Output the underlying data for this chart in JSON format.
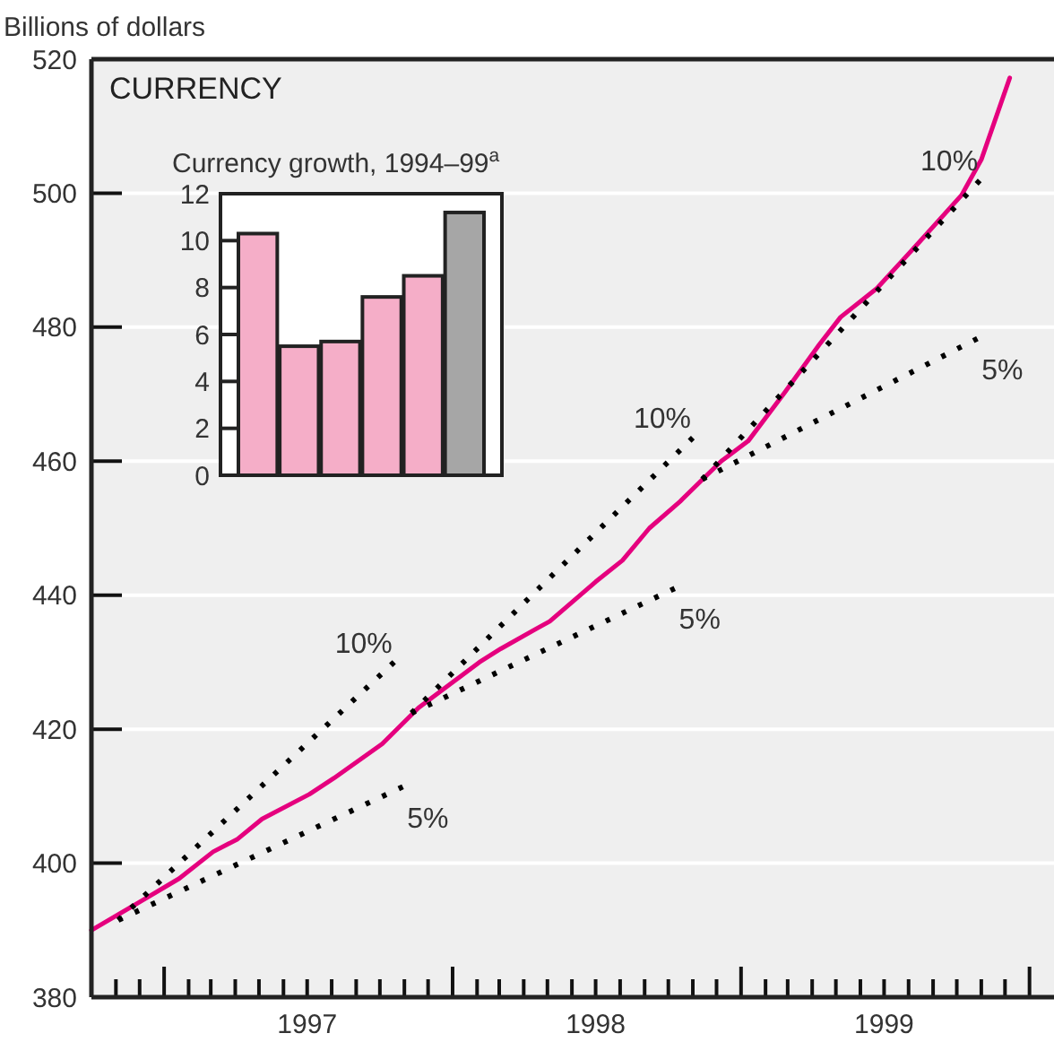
{
  "chart_data": [
    {
      "type": "line",
      "title": "CURRENCY",
      "ylabel": "Billions of dollars",
      "xlim": [
        "1996-10-01",
        "2000-02-01"
      ],
      "ylim": [
        380,
        520
      ],
      "yticks": [
        380,
        400,
        420,
        440,
        460,
        480,
        500,
        520
      ],
      "grid": "y",
      "xticks": [
        {
          "value": "1996-11-01",
          "label": null
        },
        {
          "value": "1996-12-01",
          "label": null
        },
        {
          "value": "1997-01-01",
          "label": null
        },
        {
          "value": "1997-02-01",
          "label": null
        },
        {
          "value": "1997-03-01",
          "label": null
        },
        {
          "value": "1997-04-01",
          "label": null
        },
        {
          "value": "1997-05-01",
          "label": null
        },
        {
          "value": "1997-06-01",
          "label": null
        },
        {
          "value": "1997-07-01",
          "label": "1997"
        },
        {
          "value": "1997-08-01",
          "label": null
        },
        {
          "value": "1997-09-01",
          "label": null
        },
        {
          "value": "1997-10-01",
          "label": null
        },
        {
          "value": "1997-11-01",
          "label": null
        },
        {
          "value": "1997-12-01",
          "label": null
        },
        {
          "value": "1998-01-01",
          "label": null
        },
        {
          "value": "1998-02-01",
          "label": null
        },
        {
          "value": "1998-03-01",
          "label": null
        },
        {
          "value": "1998-04-01",
          "label": null
        },
        {
          "value": "1998-05-01",
          "label": null
        },
        {
          "value": "1998-06-01",
          "label": null
        },
        {
          "value": "1998-07-01",
          "label": "1998"
        },
        {
          "value": "1998-08-01",
          "label": null
        },
        {
          "value": "1998-09-01",
          "label": null
        },
        {
          "value": "1998-10-01",
          "label": null
        },
        {
          "value": "1998-11-01",
          "label": null
        },
        {
          "value": "1998-12-01",
          "label": null
        },
        {
          "value": "1999-01-01",
          "label": null
        },
        {
          "value": "1999-02-01",
          "label": null
        },
        {
          "value": "1999-03-01",
          "label": null
        },
        {
          "value": "1999-04-01",
          "label": null
        },
        {
          "value": "1999-05-01",
          "label": null
        },
        {
          "value": "1999-06-01",
          "label": null
        },
        {
          "value": "1999-07-01",
          "label": "1999"
        },
        {
          "value": "1999-08-01",
          "label": null
        },
        {
          "value": "1999-09-01",
          "label": null
        },
        {
          "value": "1999-10-01",
          "label": null
        },
        {
          "value": "1999-11-01",
          "label": null
        },
        {
          "value": "1999-12-01",
          "label": null
        },
        {
          "value": "2000-01-01",
          "label": null
        }
      ],
      "series": [
        {
          "color": "#e5007e",
          "line_style": "solid",
          "x": [
            "1996-10-01",
            "1996-12-01",
            "1997-01-20",
            "1997-03-04",
            "1997-04-04",
            "1997-05-05",
            "1997-07-04",
            "1997-08-04",
            "1997-10-04",
            "1997-11-19",
            "1998-02-04",
            "1998-03-03",
            "1998-04-17",
            "1998-05-04",
            "1998-07-01",
            "1998-08-04",
            "1998-09-07",
            "1998-10-16",
            "1998-11-16",
            "1998-12-07",
            "1999-01-10",
            "1999-02-25",
            "1999-04-10",
            "1999-05-07",
            "1999-06-22",
            "1999-08-13",
            "1999-10-07",
            "1999-11-01",
            "1999-12-07"
          ],
          "values": [
            390,
            394.2,
            397.7,
            401.7,
            403.6,
            406.6,
            410.3,
            412.7,
            417.8,
            423.2,
            430,
            432,
            435,
            436.1,
            442,
            445.2,
            450,
            454,
            457.6,
            460,
            463,
            470.2,
            477.4,
            481.5,
            485.8,
            492.5,
            499.7,
            505,
            517.2
          ]
        },
        {
          "color": "#000000",
          "line_style": "dotted",
          "x": [
            "1996-11-04",
            "1997-10-19"
          ],
          "values": [
            391.5,
            430
          ]
        },
        {
          "color": "#000000",
          "line_style": "dotted",
          "x": [
            "1996-11-04",
            "1997-10-30"
          ],
          "values": [
            391.5,
            411.4
          ]
        },
        {
          "color": "#000000",
          "line_style": "dotted",
          "x": [
            "1997-11-10",
            "1998-11-01"
          ],
          "values": [
            422.4,
            463.5
          ]
        },
        {
          "color": "#000000",
          "line_style": "dotted",
          "x": [
            "1997-11-10",
            "1998-10-09"
          ],
          "values": [
            422.4,
            441
          ]
        },
        {
          "color": "#000000",
          "line_style": "dotted",
          "x": [
            "1998-11-13",
            "1999-10-30"
          ],
          "values": [
            457.3,
            501.9
          ]
        },
        {
          "color": "#000000",
          "line_style": "dotted",
          "x": [
            "1998-11-13",
            "1999-10-27"
          ],
          "values": [
            457.3,
            478.3
          ]
        }
      ],
      "annotations": [
        "10%",
        "5%",
        "10%",
        "5%",
        "10%",
        "5%"
      ]
    },
    {
      "type": "bar",
      "title": "Currency growth, 1994–99$^{a}$",
      "categories": [
        null,
        null,
        null,
        null,
        null,
        null
      ],
      "values": [
        10.3,
        5.5,
        5.7,
        7.6,
        8.5,
        11.2
      ],
      "colors": [
        "#f5aec8",
        "#f5aec8",
        "#f5aec8",
        "#f5aec8",
        "#f5aec8",
        "#a6a6a6"
      ],
      "ylim": [
        0,
        12
      ],
      "yticks": [
        0,
        2,
        4,
        6,
        8,
        10,
        12
      ],
      "tick_labels": "y"
    }
  ]
}
